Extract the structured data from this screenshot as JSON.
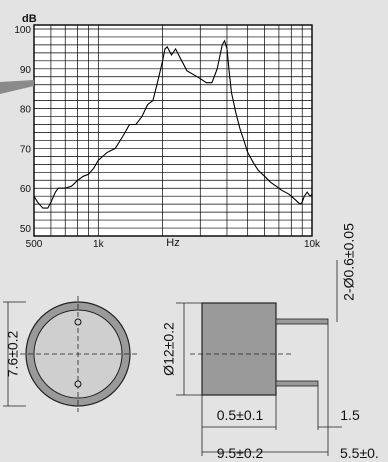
{
  "chart_data": {
    "type": "line",
    "title": "",
    "ylabel": "dB",
    "xlabel": "Hz",
    "x_scale": "log",
    "xlim": [
      500,
      10000
    ],
    "ylim": [
      48,
      101
    ],
    "grid": true,
    "x_ticks": [
      {
        "value": 500,
        "label": "500"
      },
      {
        "value": 1000,
        "label": "1k"
      },
      {
        "value": 10000,
        "label": "10k"
      }
    ],
    "y_ticks": [
      {
        "value": 50,
        "label": "50"
      },
      {
        "value": 60,
        "label": "60"
      },
      {
        "value": 70,
        "label": "70"
      },
      {
        "value": 80,
        "label": "80"
      },
      {
        "value": 90,
        "label": "90"
      },
      {
        "value": 100,
        "label": "100"
      }
    ],
    "series": [
      {
        "name": "",
        "x": [
          500,
          520,
          550,
          580,
          600,
          630,
          650,
          700,
          750,
          800,
          850,
          900,
          950,
          1000,
          1100,
          1200,
          1300,
          1400,
          1500,
          1600,
          1700,
          1800,
          1900,
          2000,
          2050,
          2100,
          2200,
          2300,
          2400,
          2600,
          2800,
          3000,
          3200,
          3400,
          3600,
          3700,
          3800,
          3900,
          4000,
          4100,
          4200,
          4400,
          4600,
          4800,
          5000,
          5300,
          5600,
          6000,
          6400,
          6800,
          7200,
          7500,
          7800,
          8000,
          8400,
          8800,
          9000,
          9200,
          9500,
          9800,
          10000
        ],
        "y": [
          58,
          56.5,
          55,
          55,
          56.5,
          59,
          60,
          60,
          60.5,
          62,
          63,
          63.5,
          65,
          67,
          69,
          70,
          73,
          76,
          76,
          78,
          81,
          82,
          87,
          92,
          95,
          95.5,
          93.5,
          95,
          93,
          89.5,
          88.5,
          87.5,
          86.5,
          86.5,
          90,
          93,
          96,
          97,
          95,
          89,
          84,
          79,
          75,
          72,
          69,
          66.5,
          64.5,
          63,
          61.5,
          60.5,
          59.5,
          59,
          58.5,
          58,
          57,
          56,
          56.5,
          58,
          59,
          58,
          58.5
        ]
      }
    ]
  },
  "drawing": {
    "front_height_label": "7.6±0.2",
    "side_diameter_label": "Ø12±0.2",
    "pin_label": "2-Ø0.6±0.05",
    "pin_spacing_label": "0.5±0.1",
    "lead_label": "1.5",
    "body_length_label": "9.5±0.2",
    "pin_length_label": "5.5±0.",
    "front_mark_label": ""
  }
}
